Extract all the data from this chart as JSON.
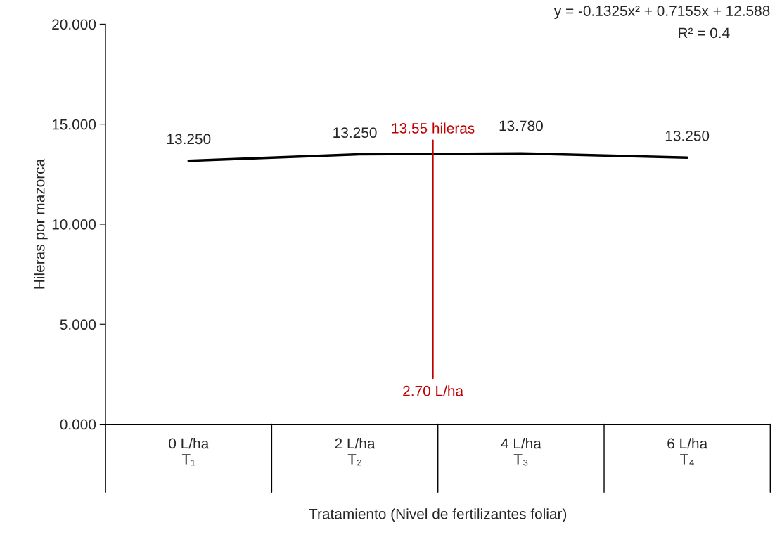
{
  "chart_data": {
    "type": "line",
    "xlabel": "Tratamiento (Nivel de fertilizantes foliar)",
    "ylabel": "Hileras por mazorca",
    "categories": [
      "0 L/ha\nT₁",
      "2 L/ha\nT₂",
      "4 L/ha\nT₃",
      "6 L/ha\nT₄"
    ],
    "series": [
      {
        "color": "#000000",
        "values": [
          13.17,
          13.49,
          13.54,
          13.33
        ]
      }
    ],
    "ylim": [
      0,
      20
    ],
    "yticks": [
      {
        "value": 0,
        "label": "0.000"
      },
      {
        "value": 5,
        "label": "5.000"
      },
      {
        "value": 10,
        "label": "10.000"
      },
      {
        "value": 15,
        "label": "15.000"
      },
      {
        "value": 20,
        "label": "20.000"
      }
    ],
    "annotations": [
      "13.250",
      "13.250",
      "13.780",
      "13.250",
      "13.55 hileras",
      "2.70 L/ha",
      "y = -0.1325x² + 0.7155x + 12.588",
      "R² = 0.4"
    ],
    "grid": false,
    "marker": "none",
    "line_style": "solid"
  }
}
